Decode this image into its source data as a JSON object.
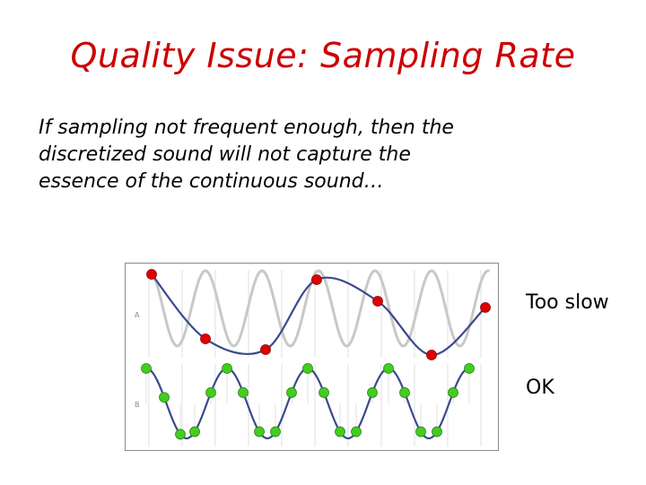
{
  "slide": {
    "title": "Quality Issue: Sampling Rate",
    "body_lines": [
      "If sampling not frequent enough, then the",
      "discretized sound will not capture the",
      "essence of the continuous sound…"
    ]
  },
  "figure": {
    "panel_a": {
      "letter": "A",
      "label": "Too slow"
    },
    "panel_b": {
      "letter": "B",
      "label": "OK"
    },
    "colors": {
      "original_wave": "#c8c8c8",
      "reconstructed_wave": "#3a4a8c",
      "slow_sample": "#e00000",
      "ok_sample": "#44cc22",
      "grid": "#d8d8d8"
    }
  }
}
